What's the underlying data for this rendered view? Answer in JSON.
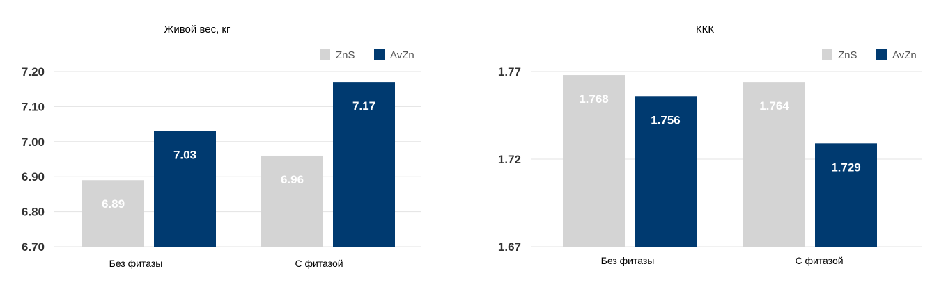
{
  "chart_data": [
    {
      "type": "bar",
      "title": "Живой вес, кг",
      "categories": [
        "Без фитазы",
        "С фитазой"
      ],
      "series": [
        {
          "name": "ZnS",
          "values": [
            6.89,
            6.96
          ],
          "labels": [
            "6.89",
            "6.96"
          ],
          "color": "#d4d4d4"
        },
        {
          "name": "AvZn",
          "values": [
            7.03,
            7.17
          ],
          "labels": [
            "7.03",
            "7.17"
          ],
          "color": "#003a70"
        }
      ],
      "ylim": [
        6.7,
        7.2
      ],
      "yticks": [
        "6.70",
        "6.80",
        "6.90",
        "7.00",
        "7.10",
        "7.20"
      ],
      "grid": true,
      "legend": "top-right"
    },
    {
      "type": "bar",
      "title": "ККК",
      "categories": [
        "Без фитазы",
        "С фитазой"
      ],
      "series": [
        {
          "name": "ZnS",
          "values": [
            1.768,
            1.764
          ],
          "labels": [
            "1.768",
            "1.764"
          ],
          "color": "#d4d4d4"
        },
        {
          "name": "AvZn",
          "values": [
            1.756,
            1.729
          ],
          "labels": [
            "1.756",
            "1.729"
          ],
          "color": "#003a70"
        }
      ],
      "ylim": [
        1.67,
        1.77
      ],
      "yticks": [
        "1.67",
        "1.72",
        "1.77"
      ],
      "grid": true,
      "legend": "top-right"
    }
  ]
}
